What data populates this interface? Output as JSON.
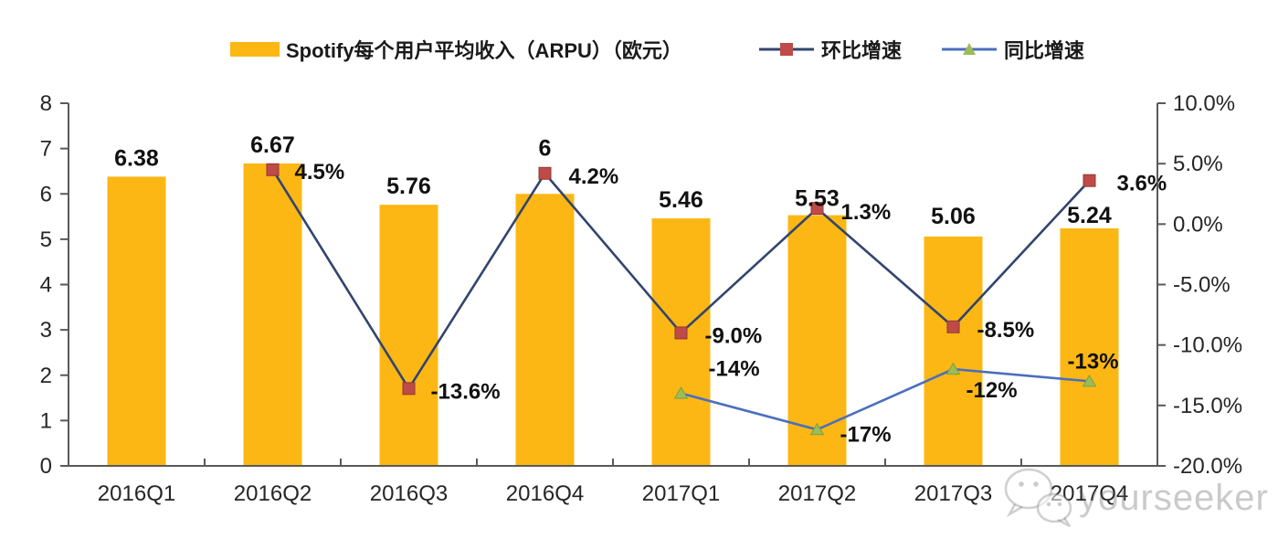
{
  "legend": {
    "bars_label": "Spotify每个用户平均收入（ARPU）（欧元）",
    "qoq_label": "环比增速",
    "yoy_label": "同比增速"
  },
  "watermark": {
    "text": "yourseeker",
    "icon": "wechat-icon"
  },
  "colors": {
    "bar": "#FCB714",
    "qoq_line": "#31456F",
    "qoq_marker": "#BE4B48",
    "yoy_line": "#4A6FBE",
    "yoy_marker": "#9CBB59",
    "axis": "#595959",
    "tick_text": "#262626",
    "label_text": "#111111"
  },
  "chart_data": {
    "type": "bar",
    "subtype": "bar-with-lines",
    "title": "",
    "categories": [
      "2016Q1",
      "2016Q2",
      "2016Q3",
      "2016Q4",
      "2017Q1",
      "2017Q2",
      "2017Q3",
      "2017Q4"
    ],
    "series": [
      {
        "name": "Spotify每个用户平均收入（ARPU）（欧元）",
        "type": "bar",
        "axis": "left",
        "values": [
          6.38,
          6.67,
          5.76,
          6,
          5.46,
          5.53,
          5.06,
          5.24
        ],
        "labels": [
          "6.38",
          "6.67",
          "5.76",
          "6",
          "5.46",
          "5.53",
          "5.06",
          "5.24"
        ]
      },
      {
        "name": "环比增速",
        "type": "line",
        "axis": "right",
        "marker": "square",
        "values": [
          null,
          4.5,
          -13.6,
          4.2,
          -9.0,
          1.3,
          -8.5,
          3.6
        ],
        "labels": [
          null,
          "4.5%",
          "-13.6%",
          "4.2%",
          "-9.0%",
          "1.3%",
          "-8.5%",
          "3.6%"
        ]
      },
      {
        "name": "同比增速",
        "type": "line",
        "axis": "right",
        "marker": "triangle",
        "values": [
          null,
          null,
          null,
          null,
          -14,
          -17,
          -12,
          -13
        ],
        "labels": [
          null,
          null,
          null,
          null,
          "-14%",
          "-17%",
          "-12%",
          "-13%"
        ]
      }
    ],
    "left_axis": {
      "min": 0,
      "max": 8,
      "tick_step": 1,
      "tick_labels": [
        "0",
        "1",
        "2",
        "3",
        "4",
        "5",
        "6",
        "7",
        "8"
      ]
    },
    "right_axis": {
      "min": -20,
      "max": 10,
      "tick_step": 5,
      "tick_labels": [
        "-20.0%",
        "-15.0%",
        "-10.0%",
        "-5.0%",
        "0.0%",
        "5.0%",
        "10.0%"
      ]
    },
    "grid": false,
    "legend_position": "top"
  }
}
